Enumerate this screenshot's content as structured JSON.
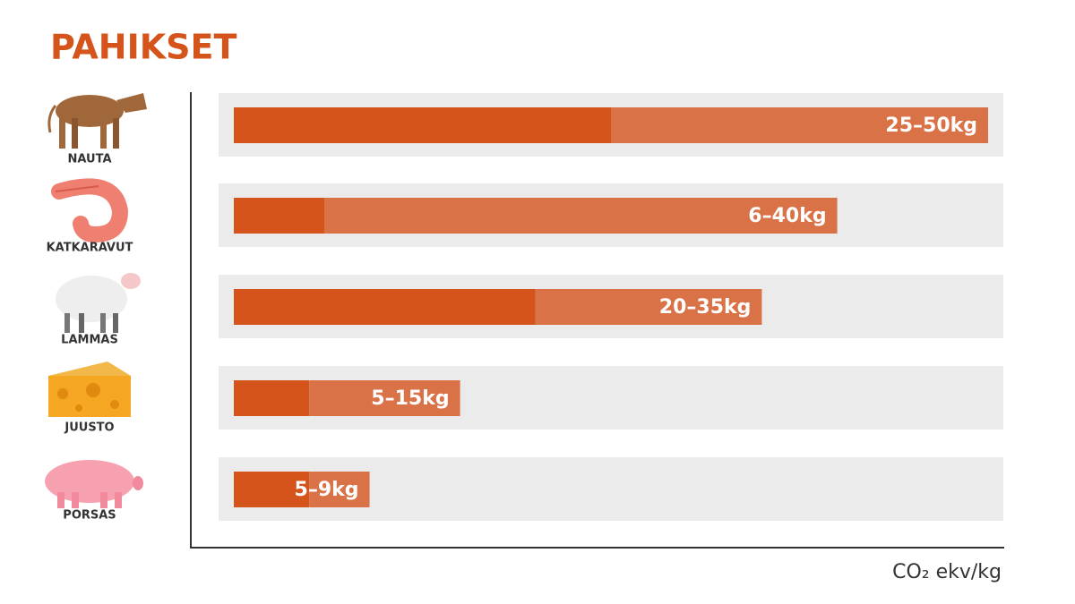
{
  "chart_data": {
    "type": "range-bar",
    "title": "PAHIKSET",
    "x_label": "CO₂ ekv/kg",
    "categories": [
      "NAUTA",
      "KATKARAVUT",
      "LAMMAS",
      "JUUSTO",
      "PORSAS"
    ],
    "low": [
      25,
      6,
      20,
      5,
      5
    ],
    "high": [
      50,
      40,
      35,
      15,
      9
    ],
    "value_labels": [
      "25–50kg",
      "6–40kg",
      "20–35kg",
      "5–15kg",
      "5–9kg"
    ],
    "xlim": [
      0,
      50
    ],
    "low_color": "#d4541b",
    "high_color": "#d97247"
  }
}
